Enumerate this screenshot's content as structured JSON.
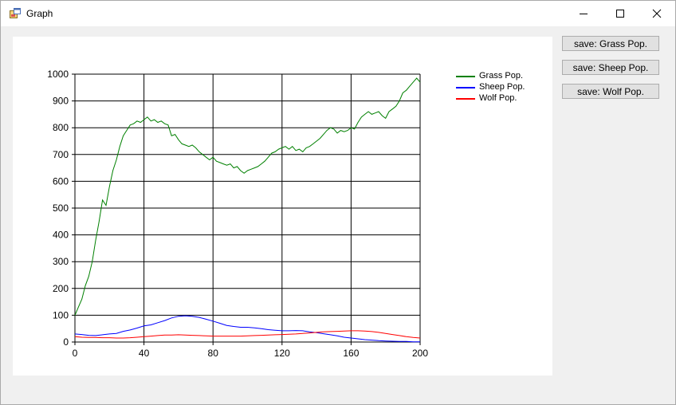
{
  "window": {
    "title": "Graph",
    "icon": "app-form-icon",
    "controls": [
      "minimize-icon",
      "maximize-icon",
      "close-icon"
    ]
  },
  "buttons": {
    "save_grass": "save: Grass Pop.",
    "save_sheep": "save: Sheep Pop.",
    "save_wolf": "save: Wolf Pop."
  },
  "chart_data": {
    "type": "line",
    "title": "",
    "xlabel": "",
    "ylabel": "",
    "xlim": [
      0,
      200
    ],
    "ylim": [
      0,
      1000
    ],
    "x_ticks": [
      "0",
      "40",
      "80",
      "120",
      "160",
      "200"
    ],
    "y_ticks": [
      "0",
      "100",
      "200",
      "300",
      "400",
      "500",
      "600",
      "700",
      "800",
      "900",
      "1000"
    ],
    "grid": true,
    "legend_position": "top-right",
    "series": [
      {
        "name": "Grass Pop.",
        "color": "#008000",
        "x": [
          0,
          2,
          4,
          6,
          8,
          10,
          12,
          14,
          16,
          18,
          20,
          22,
          24,
          26,
          28,
          30,
          32,
          34,
          36,
          38,
          40,
          42,
          44,
          46,
          48,
          50,
          52,
          54,
          56,
          58,
          60,
          62,
          64,
          66,
          68,
          70,
          72,
          74,
          76,
          78,
          80,
          82,
          84,
          86,
          88,
          90,
          92,
          94,
          96,
          98,
          100,
          102,
          104,
          106,
          108,
          110,
          112,
          114,
          116,
          118,
          120,
          122,
          124,
          126,
          128,
          130,
          132,
          134,
          136,
          138,
          140,
          142,
          144,
          146,
          148,
          150,
          152,
          154,
          156,
          158,
          160,
          162,
          164,
          166,
          168,
          170,
          172,
          174,
          176,
          178,
          180,
          182,
          184,
          186,
          188,
          190,
          192,
          194,
          196,
          198,
          200
        ],
        "values": [
          100,
          130,
          160,
          210,
          245,
          300,
          380,
          450,
          530,
          510,
          580,
          640,
          680,
          730,
          770,
          790,
          810,
          815,
          825,
          820,
          830,
          840,
          825,
          830,
          820,
          825,
          815,
          810,
          770,
          775,
          755,
          740,
          735,
          730,
          735,
          725,
          710,
          700,
          690,
          680,
          690,
          675,
          670,
          665,
          660,
          665,
          650,
          655,
          640,
          630,
          640,
          645,
          650,
          655,
          665,
          675,
          690,
          705,
          710,
          720,
          725,
          730,
          720,
          730,
          715,
          720,
          710,
          725,
          730,
          740,
          750,
          760,
          775,
          790,
          800,
          795,
          780,
          790,
          785,
          790,
          800,
          795,
          820,
          840,
          850,
          860,
          850,
          855,
          860,
          845,
          835,
          860,
          870,
          880,
          900,
          930,
          940,
          955,
          970,
          985,
          970
        ]
      },
      {
        "name": "Sheep Pop.",
        "color": "#0000ff",
        "x": [
          0,
          4,
          8,
          12,
          16,
          20,
          24,
          28,
          32,
          36,
          40,
          44,
          48,
          52,
          56,
          60,
          64,
          68,
          72,
          76,
          80,
          84,
          88,
          92,
          96,
          100,
          104,
          108,
          112,
          116,
          120,
          124,
          128,
          132,
          136,
          140,
          144,
          148,
          152,
          156,
          160,
          164,
          168,
          172,
          176,
          180,
          184,
          188,
          192,
          196,
          200
        ],
        "values": [
          30,
          28,
          25,
          24,
          27,
          30,
          32,
          40,
          45,
          52,
          60,
          64,
          72,
          80,
          90,
          96,
          98,
          96,
          92,
          85,
          78,
          70,
          62,
          58,
          55,
          55,
          53,
          50,
          46,
          44,
          42,
          42,
          43,
          42,
          38,
          35,
          31,
          27,
          23,
          18,
          15,
          12,
          9,
          7,
          5,
          4,
          3,
          2,
          2,
          1,
          1
        ]
      },
      {
        "name": "Wolf Pop.",
        "color": "#ff0000",
        "x": [
          0,
          4,
          8,
          12,
          16,
          20,
          24,
          28,
          32,
          36,
          40,
          44,
          48,
          52,
          56,
          60,
          64,
          68,
          72,
          76,
          80,
          84,
          88,
          92,
          96,
          100,
          104,
          108,
          112,
          116,
          120,
          124,
          128,
          132,
          136,
          140,
          144,
          148,
          152,
          156,
          160,
          164,
          168,
          172,
          176,
          180,
          184,
          188,
          192,
          196,
          200
        ],
        "values": [
          20,
          18,
          17,
          17,
          16,
          16,
          15,
          15,
          16,
          18,
          20,
          22,
          24,
          26,
          26,
          27,
          26,
          25,
          24,
          23,
          22,
          22,
          22,
          22,
          22,
          23,
          24,
          25,
          26,
          27,
          28,
          29,
          30,
          32,
          34,
          36,
          38,
          39,
          40,
          41,
          42,
          42,
          41,
          39,
          36,
          32,
          28,
          24,
          20,
          17,
          15
        ]
      }
    ]
  }
}
